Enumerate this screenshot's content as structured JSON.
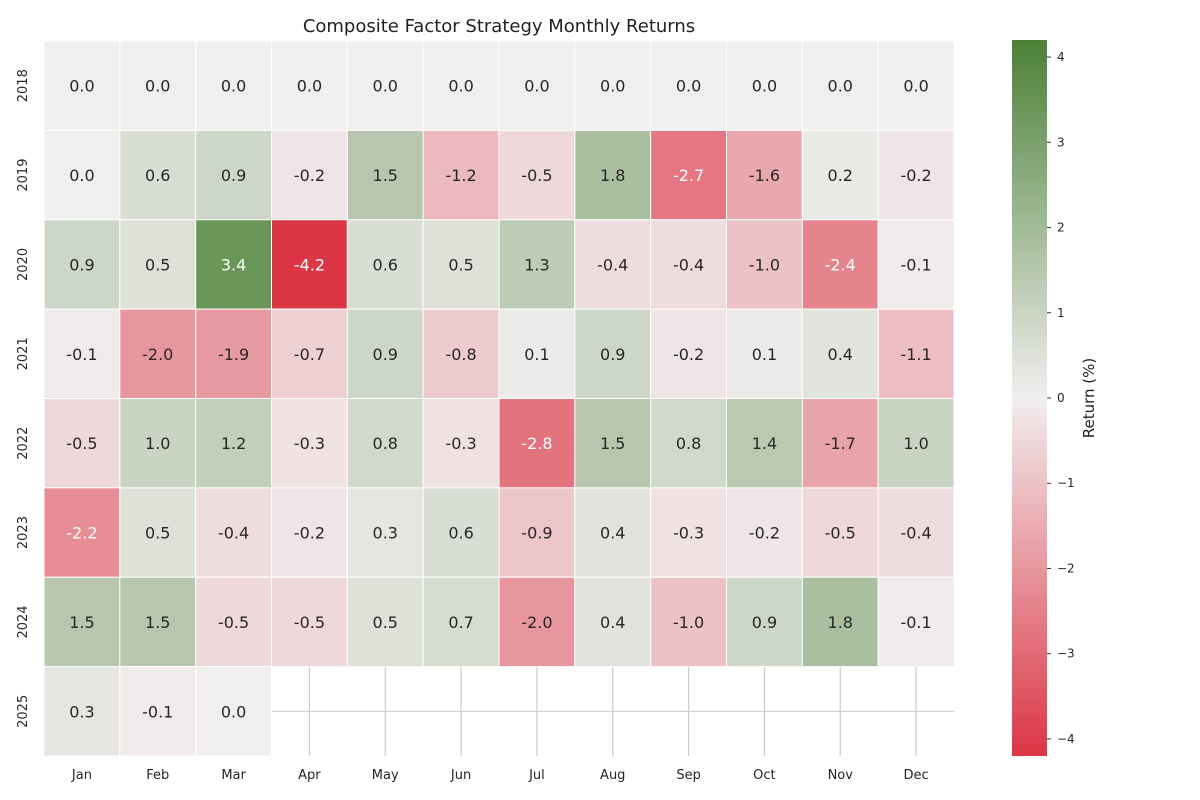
{
  "chart_data": {
    "type": "heatmap",
    "title": "Composite Factor Strategy Monthly Returns",
    "x_categories": [
      "Jan",
      "Feb",
      "Mar",
      "Apr",
      "May",
      "Jun",
      "Jul",
      "Aug",
      "Sep",
      "Oct",
      "Nov",
      "Dec"
    ],
    "y_categories": [
      "2018",
      "2019",
      "2020",
      "2021",
      "2022",
      "2023",
      "2024",
      "2025"
    ],
    "values": [
      [
        0.0,
        0.0,
        0.0,
        0.0,
        0.0,
        0.0,
        0.0,
        0.0,
        0.0,
        0.0,
        0.0,
        0.0
      ],
      [
        0.0,
        0.6,
        0.9,
        -0.2,
        1.5,
        -1.2,
        -0.5,
        1.8,
        -2.7,
        -1.6,
        0.2,
        -0.2
      ],
      [
        0.9,
        0.5,
        3.4,
        -4.2,
        0.6,
        0.5,
        1.3,
        -0.4,
        -0.4,
        -1.0,
        -2.4,
        -0.1
      ],
      [
        -0.1,
        -2.0,
        -1.9,
        -0.7,
        0.9,
        -0.8,
        0.1,
        0.9,
        -0.2,
        0.1,
        0.4,
        -1.1
      ],
      [
        -0.5,
        1.0,
        1.2,
        -0.3,
        0.8,
        -0.3,
        -2.8,
        1.5,
        0.8,
        1.4,
        -1.7,
        1.0
      ],
      [
        -2.2,
        0.5,
        -0.4,
        -0.2,
        0.3,
        0.6,
        -0.9,
        0.4,
        -0.3,
        -0.2,
        -0.5,
        -0.4
      ],
      [
        1.5,
        1.5,
        -0.5,
        -0.5,
        0.5,
        0.7,
        -2.0,
        0.4,
        -1.0,
        0.9,
        1.8,
        -0.1
      ],
      [
        0.3,
        -0.1,
        0.0,
        null,
        null,
        null,
        null,
        null,
        null,
        null,
        null,
        null
      ]
    ],
    "colorbar": {
      "label": "Return (%)",
      "range": [
        -4.2,
        4.2
      ],
      "ticks": [
        4,
        3,
        2,
        1,
        0,
        -1,
        -2,
        -3,
        -4
      ],
      "tick_labels": [
        "4",
        "3",
        "2",
        "1",
        "0",
        "−1",
        "−2",
        "−3",
        "−4"
      ]
    },
    "colors": {
      "negative": "#dc3545",
      "neutral": "#f1eeee",
      "positive": "#4b8137"
    },
    "grid": true
  }
}
